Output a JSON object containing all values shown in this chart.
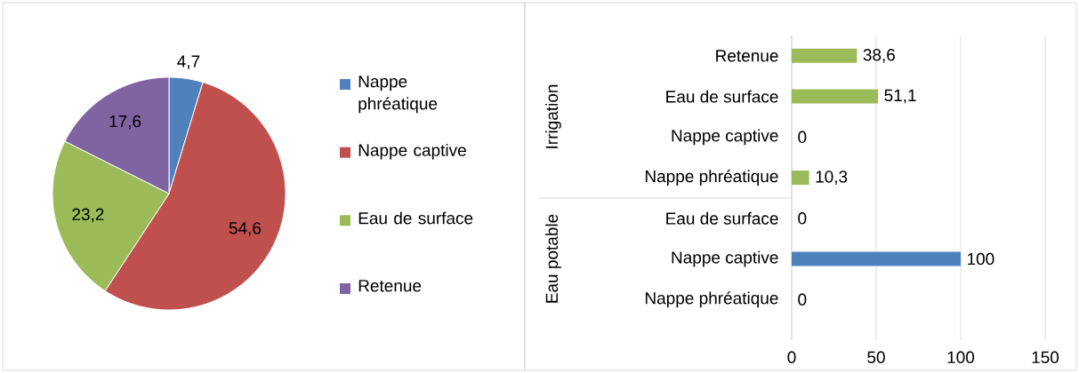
{
  "chart_data": [
    {
      "type": "pie",
      "categories": [
        "Nappe phréatique",
        "Nappe captive",
        "Eau de surface",
        "Retenue"
      ],
      "values": [
        4.7,
        54.6,
        23.2,
        17.6
      ],
      "colors": [
        "#4f81bd",
        "#c0504d",
        "#9bbb59",
        "#8064a2"
      ],
      "value_labels": [
        "4,7",
        "54,6",
        "23,2",
        "17,6"
      ],
      "legend": "right"
    },
    {
      "type": "bar",
      "orientation": "horizontal",
      "categories": [
        "Retenue",
        "Eau de surface",
        "Nappe captive",
        "Nappe phréatique",
        "Eau de surface",
        "Nappe captive",
        "Nappe phréatique"
      ],
      "values": [
        38.6,
        51.1,
        0,
        10.3,
        0,
        100,
        0
      ],
      "colors": [
        "#9bbb59",
        "#9bbb59",
        "#9bbb59",
        "#9bbb59",
        "#4f81bd",
        "#4f81bd",
        "#4f81bd"
      ],
      "value_labels": [
        "38,6",
        "51,1",
        "0",
        "10,3",
        "0",
        "100",
        "0"
      ],
      "annotations": [
        "Irrigation",
        "Eau potable"
      ],
      "xlim": [
        0,
        150
      ],
      "xticks": [
        0,
        50,
        100,
        150
      ],
      "grid": "x"
    }
  ]
}
